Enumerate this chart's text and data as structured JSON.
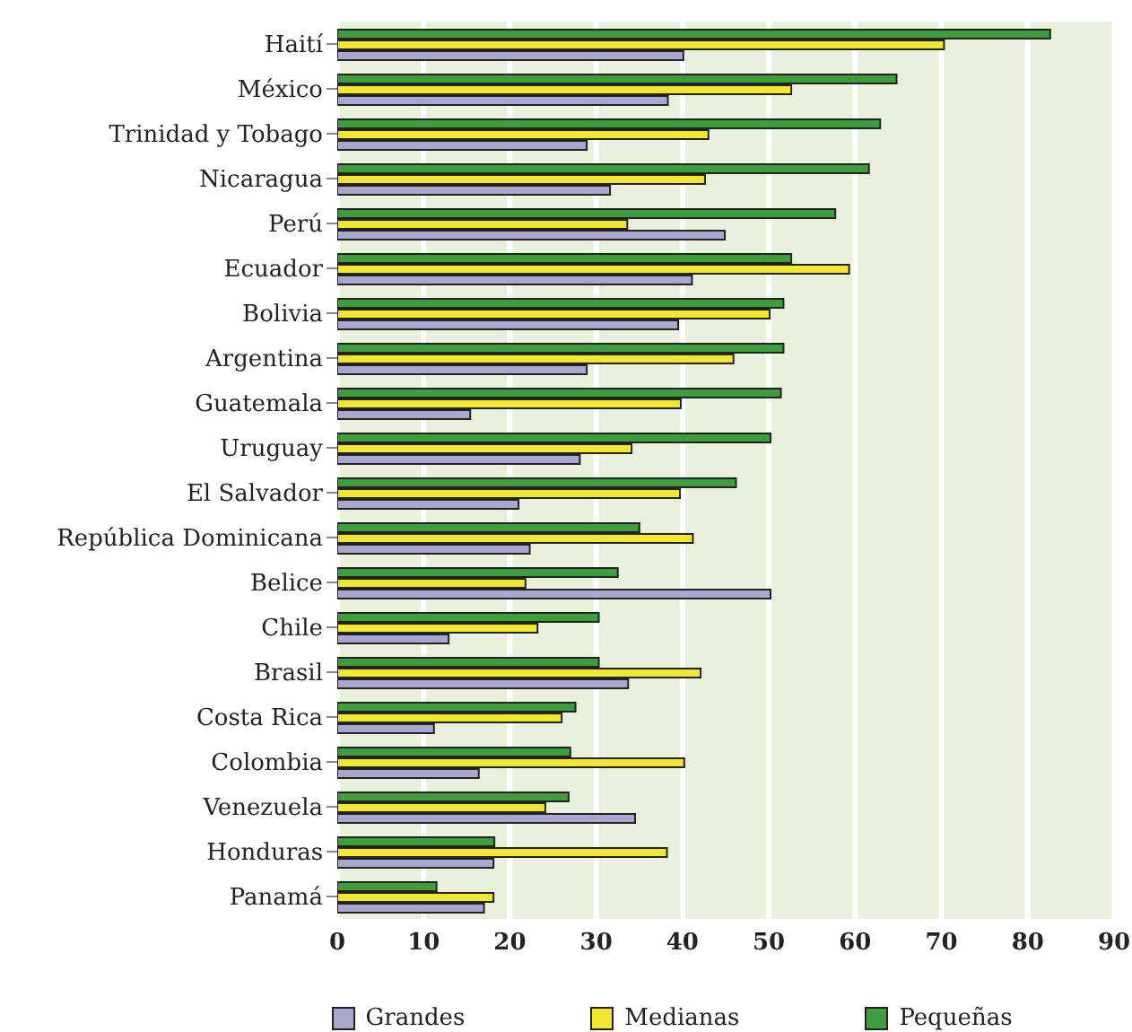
{
  "chart_data": {
    "type": "bar",
    "orientation": "horizontal",
    "categories": [
      "Haití",
      "México",
      "Trinidad y Tobago",
      "Nicaragua",
      "Perú",
      "Ecuador",
      "Bolivia",
      "Argentina",
      "Guatemala",
      "Uruguay",
      "El Salvador",
      "República Dominicana",
      "Belice",
      "Chile",
      "Brasil",
      "Costa Rica",
      "Colombia",
      "Venezuela",
      "Honduras",
      "Panamá"
    ],
    "series": [
      {
        "name": "Grandes",
        "color": "#a9a6cf",
        "values": [
          40.1,
          38.3,
          28.9,
          31.6,
          44.9,
          41.1,
          39.5,
          28.9,
          15.4,
          28.1,
          21.0,
          22.3,
          50.2,
          12.9,
          33.7,
          11.2,
          16.4,
          34.5,
          18.1,
          17.0
        ]
      },
      {
        "name": "Medianas",
        "color": "#f2e830",
        "values": [
          70.3,
          52.6,
          43.0,
          42.6,
          33.6,
          59.3,
          50.1,
          45.9,
          39.8,
          34.1,
          39.7,
          41.2,
          21.8,
          23.2,
          42.1,
          26.0,
          40.2,
          24.1,
          38.2,
          18.1
        ]
      },
      {
        "name": "Pequeñas",
        "color": "#3e9e3e",
        "values": [
          82.6,
          64.8,
          62.9,
          61.6,
          57.7,
          52.6,
          51.7,
          51.7,
          51.4,
          50.2,
          46.2,
          35.0,
          32.5,
          30.3,
          30.3,
          27.6,
          27.0,
          26.8,
          18.2,
          11.5
        ]
      }
    ],
    "xlim": [
      0,
      90
    ],
    "xticks": [
      0,
      10,
      20,
      30,
      40,
      50,
      60,
      70,
      80,
      90
    ],
    "grid": "x",
    "legend": "bottom"
  }
}
